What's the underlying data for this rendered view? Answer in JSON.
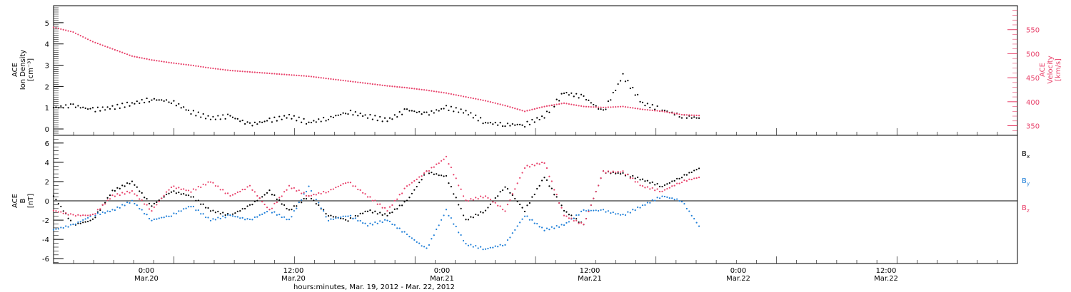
{
  "chart_data": [
    {
      "type": "scatter",
      "panel": "top",
      "ylabel_left": [
        "ACE",
        "Ion Density",
        "[cm⁻³]"
      ],
      "ylabel_right": [
        "ACE",
        "Velocity",
        "[km/s]"
      ],
      "y_left": {
        "lim": [
          -0.3,
          5.8
        ],
        "ticks": [
          0,
          1,
          2,
          3,
          4,
          5
        ]
      },
      "y_right": {
        "lim": [
          330,
          600
        ],
        "ticks": [
          350,
          400,
          450,
          500,
          550
        ]
      },
      "colors": {
        "density": "#000000",
        "velocity": "#e8416a"
      },
      "series": [
        {
          "axis": "left",
          "x": [
            0,
            0.1,
            0.2,
            0.3,
            0.4,
            0.5,
            0.6,
            0.7,
            0.8,
            0.9,
            1.0,
            1.1,
            1.2,
            1.3,
            1.4,
            1.5,
            1.6,
            1.7,
            1.8,
            1.9,
            2.0,
            2.1,
            2.2,
            2.3,
            2.4,
            2.5,
            2.6,
            2.7,
            2.8,
            2.9,
            3.0,
            3.1,
            3.2,
            3.3
          ],
          "values": [
            1.0,
            1.1,
            0.9,
            1.0,
            1.2,
            1.4,
            1.3,
            0.8,
            0.5,
            0.6,
            0.2,
            0.4,
            0.6,
            0.3,
            0.5,
            0.8,
            0.6,
            0.4,
            0.9,
            0.7,
            1.0,
            0.8,
            0.3,
            0.2,
            0.2,
            0.6,
            1.7,
            1.5,
            0.8,
            2.5,
            1.2,
            0.9,
            0.6,
            0.5
          ]
        },
        {
          "axis": "right",
          "x": [
            0,
            0.1,
            0.2,
            0.3,
            0.4,
            0.5,
            0.6,
            0.7,
            0.8,
            0.9,
            1.0,
            1.1,
            1.2,
            1.3,
            1.4,
            1.5,
            1.6,
            1.7,
            1.8,
            1.9,
            2.0,
            2.1,
            2.2,
            2.3,
            2.4,
            2.5,
            2.6,
            2.7,
            2.8,
            2.9,
            3.0,
            3.1,
            3.2,
            3.3
          ],
          "values": [
            555,
            545,
            525,
            510,
            495,
            487,
            481,
            476,
            470,
            465,
            462,
            459,
            456,
            453,
            448,
            443,
            438,
            433,
            429,
            424,
            418,
            410,
            402,
            392,
            380,
            390,
            397,
            390,
            388,
            390,
            384,
            380,
            373,
            371
          ]
        }
      ]
    },
    {
      "type": "scatter",
      "panel": "bottom",
      "ylabel_left": [
        "ACE",
        "B",
        "[nT]"
      ],
      "y_left": {
        "lim": [
          -6.5,
          6.8
        ],
        "ticks": [
          -6,
          -4,
          -2,
          0,
          2,
          4,
          6
        ]
      },
      "zero_line": true,
      "legend": {
        "placement": "right",
        "entries": [
          {
            "label": "B",
            "sub": "x",
            "color": "#000000"
          },
          {
            "label": "B",
            "sub": "y",
            "color": "#1f7fd8"
          },
          {
            "label": "B",
            "sub": "z",
            "color": "#e8416a"
          }
        ]
      },
      "series": [
        {
          "color": "#000000",
          "x": [
            0,
            0.1,
            0.2,
            0.3,
            0.4,
            0.5,
            0.6,
            0.7,
            0.8,
            0.9,
            1.0,
            1.1,
            1.2,
            1.3,
            1.4,
            1.5,
            1.6,
            1.7,
            1.8,
            1.9,
            2.0,
            2.1,
            2.2,
            2.3,
            2.4,
            2.5,
            2.6,
            2.7,
            2.8,
            2.9,
            3.0,
            3.1,
            3.2,
            3.3
          ],
          "values": [
            0.5,
            -2.5,
            -2.0,
            1.0,
            2.0,
            -0.5,
            1.0,
            0.5,
            -1.0,
            -1.5,
            -0.5,
            1.0,
            -1.0,
            0.5,
            -1.5,
            -2.0,
            -1.0,
            -1.5,
            0.0,
            3.0,
            2.5,
            -2.0,
            -1.0,
            1.5,
            -1.0,
            2.5,
            -1.0,
            -2.5,
            3.0,
            2.8,
            2.2,
            1.5,
            2.5,
            3.5
          ]
        },
        {
          "color": "#1f7fd8",
          "x": [
            0,
            0.1,
            0.2,
            0.3,
            0.4,
            0.5,
            0.6,
            0.7,
            0.8,
            0.9,
            1.0,
            1.1,
            1.2,
            1.3,
            1.4,
            1.5,
            1.6,
            1.7,
            1.8,
            1.9,
            2.0,
            2.1,
            2.2,
            2.3,
            2.4,
            2.5,
            2.6,
            2.7,
            2.8,
            2.9,
            3.0,
            3.1,
            3.2,
            3.3
          ],
          "values": [
            -3.0,
            -2.5,
            -1.5,
            -1.0,
            0.0,
            -2.0,
            -1.5,
            -0.5,
            -2.0,
            -1.5,
            -2.0,
            -1.0,
            -2.0,
            1.5,
            -2.0,
            -1.5,
            -2.5,
            -2.0,
            -3.5,
            -5.0,
            -1.0,
            -4.5,
            -5.0,
            -4.5,
            -1.5,
            -3.0,
            -2.5,
            -1.0,
            -1.0,
            -1.5,
            -0.5,
            0.5,
            0.0,
            -3.0
          ]
        },
        {
          "color": "#e8416a",
          "x": [
            0,
            0.1,
            0.2,
            0.3,
            0.4,
            0.5,
            0.6,
            0.7,
            0.8,
            0.9,
            1.0,
            1.1,
            1.2,
            1.3,
            1.4,
            1.5,
            1.6,
            1.7,
            1.8,
            1.9,
            2.0,
            2.1,
            2.2,
            2.3,
            2.4,
            2.5,
            2.6,
            2.7,
            2.8,
            2.9,
            3.0,
            3.1,
            3.2,
            3.3
          ],
          "values": [
            -1.0,
            -1.5,
            -1.5,
            0.5,
            1.0,
            -1.0,
            1.5,
            1.0,
            2.0,
            0.5,
            1.5,
            -1.0,
            1.5,
            0.5,
            1.0,
            2.0,
            0.5,
            -1.0,
            1.5,
            3.0,
            4.5,
            0.0,
            0.5,
            -1.0,
            3.5,
            4.0,
            -1.5,
            -2.5,
            3.0,
            3.0,
            1.5,
            1.0,
            2.0,
            2.5
          ]
        }
      ]
    }
  ],
  "x_axis": {
    "tick_labels": [
      {
        "time": "0:00",
        "date": "Mar.20"
      },
      {
        "time": "12:00",
        "date": "Mar.20"
      },
      {
        "time": "0:00",
        "date": "Mar.21"
      },
      {
        "time": "12:00",
        "date": "Mar.21"
      },
      {
        "time": "0:00",
        "date": "Mar.22"
      },
      {
        "time": "12:00",
        "date": "Mar.22"
      }
    ],
    "xlabel": "hours:minutes, Mar. 19, 2012 - Mar. 22, 2012"
  }
}
